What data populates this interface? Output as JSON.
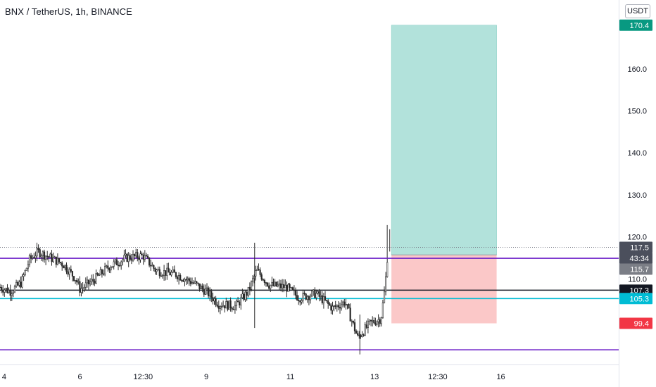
{
  "header": {
    "symbol": "BNX / TetherUS, 1h, BINANCE",
    "currency": "USDT"
  },
  "chart_data": {
    "type": "candlestick",
    "ylim": [
      89.6,
      176.4
    ],
    "y_ticks": [
      "110.0",
      "120.0",
      "130.0",
      "140.0",
      "150.0",
      "160.0"
    ],
    "y_tick_values": [
      110,
      120,
      130,
      140,
      150,
      160
    ],
    "x_ticks": [
      "4",
      "6",
      "12:30",
      "9",
      "11",
      "13",
      "12:30",
      "16"
    ],
    "x_tick_positions": [
      4.2,
      6,
      7.5,
      9,
      11,
      13,
      14.5,
      16
    ],
    "xlim": [
      4.1,
      18.8
    ],
    "horizontal_lines": [
      {
        "value": 114.9,
        "color": "#6a1bc7"
      },
      {
        "value": 107.3,
        "color": "#131722"
      },
      {
        "value": 105.3,
        "color": "#00bcd4"
      },
      {
        "value": 93.1,
        "color": "#6a1bc7"
      }
    ],
    "position_tool": {
      "entry": 115.7,
      "target": 170.4,
      "stop": 99.4,
      "x_range": [
        13.4,
        15.9
      ],
      "profit_color": "#b2e2db",
      "loss_color": "#fbc8c8"
    },
    "price_line": 117.5,
    "price_badges": [
      {
        "label": "170.4",
        "value": 170.4,
        "color": "#089981"
      },
      {
        "label": "117.5",
        "value": 117.5,
        "color": "#4b4f5c"
      },
      {
        "label": "43:34",
        "value": 114.9,
        "color": "#4b4f5c"
      },
      {
        "label": "115.7",
        "value": 112.3,
        "color": "#7b7e86"
      },
      {
        "label": "107.3",
        "value": 107.3,
        "color": "#131722"
      },
      {
        "label": "105.3",
        "value": 105.3,
        "color": "#00bcd4"
      },
      {
        "label": "99.4",
        "value": 99.4,
        "color": "#f23645"
      }
    ],
    "price_anchors": [
      {
        "x": 4.1,
        "y": 108.0
      },
      {
        "x": 4.35,
        "y": 107.0
      },
      {
        "x": 4.6,
        "y": 109.0
      },
      {
        "x": 4.8,
        "y": 114.5
      },
      {
        "x": 5.0,
        "y": 116.5
      },
      {
        "x": 5.3,
        "y": 115.0
      },
      {
        "x": 5.6,
        "y": 113.5
      },
      {
        "x": 5.9,
        "y": 110.0
      },
      {
        "x": 6.0,
        "y": 107.5
      },
      {
        "x": 6.3,
        "y": 109.5
      },
      {
        "x": 6.7,
        "y": 113.0
      },
      {
        "x": 7.1,
        "y": 115.0
      },
      {
        "x": 7.5,
        "y": 115.5
      },
      {
        "x": 7.8,
        "y": 112.0
      },
      {
        "x": 8.3,
        "y": 111.0
      },
      {
        "x": 8.7,
        "y": 109.0
      },
      {
        "x": 9.0,
        "y": 107.0
      },
      {
        "x": 9.3,
        "y": 104.0
      },
      {
        "x": 9.7,
        "y": 103.5
      },
      {
        "x": 10.0,
        "y": 107.0
      },
      {
        "x": 10.2,
        "y": 112.0
      },
      {
        "x": 10.5,
        "y": 108.5
      },
      {
        "x": 10.9,
        "y": 108.0
      },
      {
        "x": 11.2,
        "y": 105.5
      },
      {
        "x": 11.6,
        "y": 106.5
      },
      {
        "x": 12.0,
        "y": 103.0
      },
      {
        "x": 12.3,
        "y": 104.5
      },
      {
        "x": 12.6,
        "y": 96.0
      },
      {
        "x": 12.9,
        "y": 99.5
      },
      {
        "x": 13.15,
        "y": 100.5
      },
      {
        "x": 13.25,
        "y": 108.0
      },
      {
        "x": 13.32,
        "y": 117.5
      }
    ]
  }
}
